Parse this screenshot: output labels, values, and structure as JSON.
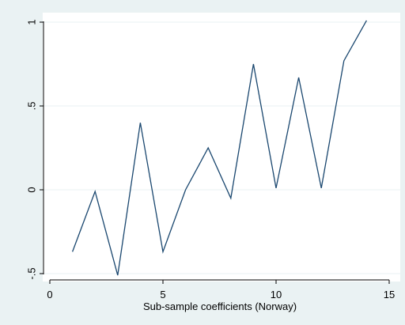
{
  "chart_data": {
    "type": "line",
    "title": "",
    "xlabel": "Sub-sample coefficients  (Norway)",
    "ylabel": "",
    "xlim": [
      0,
      15
    ],
    "ylim": [
      -0.5,
      1.0
    ],
    "xticks": [
      0,
      5,
      10,
      15
    ],
    "xtick_labels": [
      "0",
      "5",
      "10",
      "15"
    ],
    "yticks": [
      -0.5,
      0,
      0.5,
      1
    ],
    "ytick_labels": [
      "-.5",
      "0",
      ".5",
      "1"
    ],
    "grid": "horizontal",
    "legend": "none",
    "series": [
      {
        "x": [
          1,
          2,
          3,
          4,
          5,
          6,
          7,
          8,
          9,
          10,
          11,
          12,
          13,
          14
        ],
        "values": [
          -0.37,
          -0.01,
          -0.51,
          0.4,
          -0.37,
          0.0,
          0.25,
          -0.05,
          0.75,
          0.01,
          0.67,
          0.01,
          0.77,
          1.01
        ],
        "color": "#1a476f"
      }
    ],
    "colors": {
      "background": "#eaf2f3",
      "plot_area": "#ffffff",
      "grid": "#eaf2f3",
      "axis": "#000000"
    }
  }
}
